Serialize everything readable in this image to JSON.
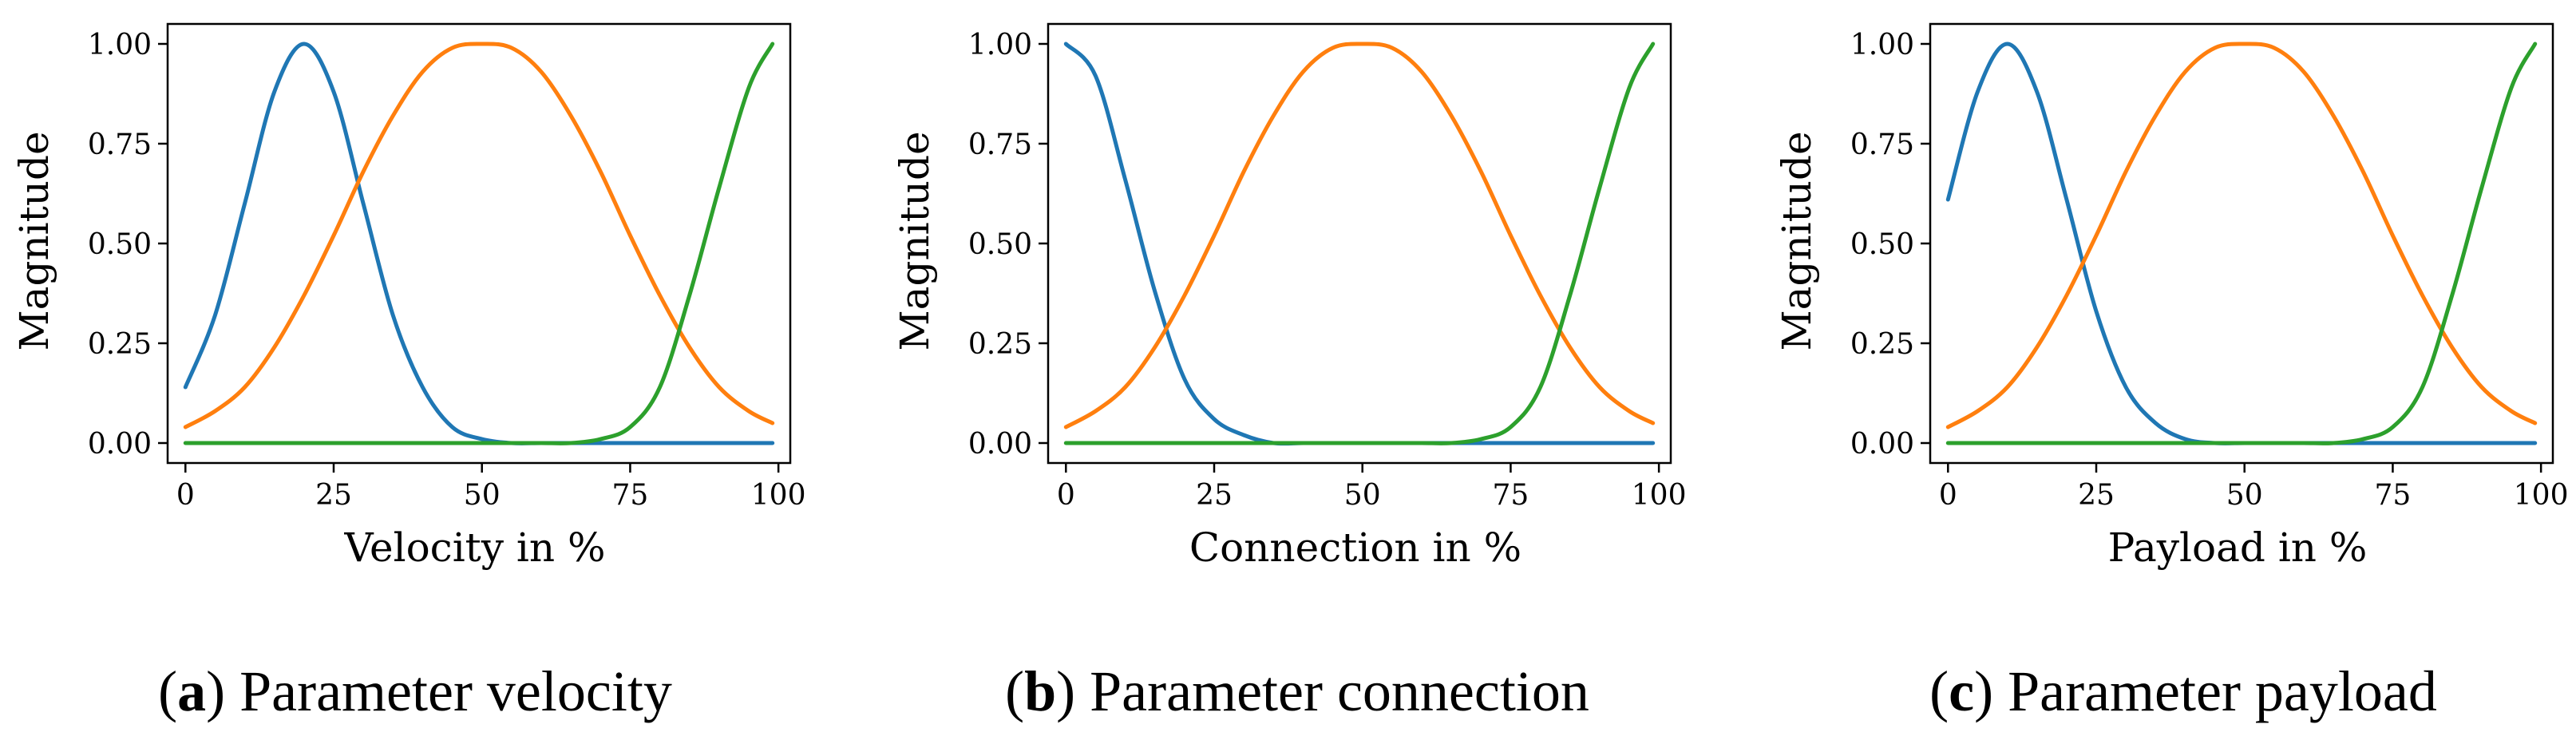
{
  "figure": {
    "panels": [
      {
        "caption_letter": "a",
        "caption_text": "Parameter velocity"
      },
      {
        "caption_letter": "b",
        "caption_text": "Parameter connection"
      },
      {
        "caption_letter": "c",
        "caption_text": "Parameter payload"
      }
    ]
  },
  "chart_data": [
    {
      "type": "line",
      "title": "",
      "xlabel": "Velocity in %",
      "ylabel": "Magnitude",
      "xlim": [
        -3,
        102
      ],
      "ylim": [
        -0.05,
        1.05
      ],
      "xticks": [
        0,
        25,
        50,
        75,
        100
      ],
      "yticks": [
        "0.00",
        "0.25",
        "0.50",
        "0.75",
        "1.00"
      ],
      "x": [
        0,
        5,
        10,
        15,
        20,
        25,
        30,
        35,
        40,
        45,
        50,
        55,
        60,
        65,
        70,
        75,
        80,
        85,
        90,
        95,
        99
      ],
      "series": [
        {
          "color": "#1f77b4",
          "values": [
            0.14,
            0.32,
            0.6,
            0.88,
            1.0,
            0.88,
            0.6,
            0.32,
            0.14,
            0.04,
            0.01,
            0.0,
            0.0,
            0.0,
            0.0,
            0.0,
            0.0,
            0.0,
            0.0,
            0.0,
            0.0
          ]
        },
        {
          "color": "#ff7f0e",
          "values": [
            0.04,
            0.08,
            0.14,
            0.24,
            0.37,
            0.52,
            0.68,
            0.82,
            0.93,
            0.99,
            1.0,
            0.99,
            0.93,
            0.82,
            0.68,
            0.52,
            0.37,
            0.24,
            0.14,
            0.08,
            0.05
          ]
        },
        {
          "color": "#2ca02c",
          "values": [
            0.0,
            0.0,
            0.0,
            0.0,
            0.0,
            0.0,
            0.0,
            0.0,
            0.0,
            0.0,
            0.0,
            0.0,
            0.0,
            0.0,
            0.01,
            0.04,
            0.14,
            0.37,
            0.64,
            0.89,
            1.0
          ]
        }
      ],
      "grid": false,
      "legend": "none"
    },
    {
      "type": "line",
      "title": "",
      "xlabel": "Connection in %",
      "ylabel": "Magnitude",
      "xlim": [
        -3,
        102
      ],
      "ylim": [
        -0.05,
        1.05
      ],
      "xticks": [
        0,
        25,
        50,
        75,
        100
      ],
      "yticks": [
        "0.00",
        "0.25",
        "0.50",
        "0.75",
        "1.00"
      ],
      "x": [
        0,
        5,
        10,
        15,
        20,
        25,
        30,
        35,
        40,
        45,
        50,
        55,
        60,
        65,
        70,
        75,
        80,
        85,
        90,
        95,
        99
      ],
      "series": [
        {
          "color": "#1f77b4",
          "values": [
            1.0,
            0.92,
            0.66,
            0.38,
            0.16,
            0.06,
            0.02,
            0.0,
            0.0,
            0.0,
            0.0,
            0.0,
            0.0,
            0.0,
            0.0,
            0.0,
            0.0,
            0.0,
            0.0,
            0.0,
            0.0
          ]
        },
        {
          "color": "#ff7f0e",
          "values": [
            0.04,
            0.08,
            0.14,
            0.24,
            0.37,
            0.52,
            0.68,
            0.82,
            0.93,
            0.99,
            1.0,
            0.99,
            0.93,
            0.82,
            0.68,
            0.52,
            0.37,
            0.24,
            0.14,
            0.08,
            0.05
          ]
        },
        {
          "color": "#2ca02c",
          "values": [
            0.0,
            0.0,
            0.0,
            0.0,
            0.0,
            0.0,
            0.0,
            0.0,
            0.0,
            0.0,
            0.0,
            0.0,
            0.0,
            0.0,
            0.01,
            0.04,
            0.14,
            0.37,
            0.64,
            0.89,
            1.0
          ]
        }
      ],
      "grid": false,
      "legend": "none"
    },
    {
      "type": "line",
      "title": "",
      "xlabel": "Payload in %",
      "ylabel": "Magnitude",
      "xlim": [
        -3,
        102
      ],
      "ylim": [
        -0.05,
        1.05
      ],
      "xticks": [
        0,
        25,
        50,
        75,
        100
      ],
      "yticks": [
        "0.00",
        "0.25",
        "0.50",
        "0.75",
        "1.00"
      ],
      "x": [
        0,
        5,
        10,
        15,
        20,
        25,
        30,
        35,
        40,
        45,
        50,
        55,
        60,
        65,
        70,
        75,
        80,
        85,
        90,
        95,
        99
      ],
      "series": [
        {
          "color": "#1f77b4",
          "values": [
            0.61,
            0.88,
            1.0,
            0.88,
            0.61,
            0.33,
            0.14,
            0.05,
            0.01,
            0.0,
            0.0,
            0.0,
            0.0,
            0.0,
            0.0,
            0.0,
            0.0,
            0.0,
            0.0,
            0.0,
            0.0
          ]
        },
        {
          "color": "#ff7f0e",
          "values": [
            0.04,
            0.08,
            0.14,
            0.24,
            0.37,
            0.52,
            0.68,
            0.82,
            0.93,
            0.99,
            1.0,
            0.99,
            0.93,
            0.82,
            0.68,
            0.52,
            0.37,
            0.24,
            0.14,
            0.08,
            0.05
          ]
        },
        {
          "color": "#2ca02c",
          "values": [
            0.0,
            0.0,
            0.0,
            0.0,
            0.0,
            0.0,
            0.0,
            0.0,
            0.0,
            0.0,
            0.0,
            0.0,
            0.0,
            0.0,
            0.01,
            0.04,
            0.14,
            0.37,
            0.64,
            0.89,
            1.0
          ]
        }
      ],
      "grid": false,
      "legend": "none"
    }
  ]
}
